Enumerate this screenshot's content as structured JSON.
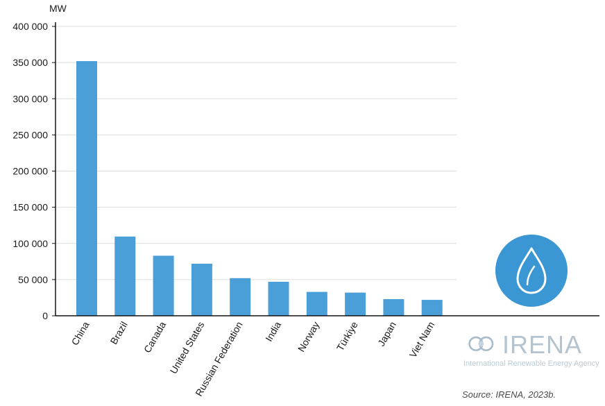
{
  "chart_data": {
    "type": "bar",
    "unit_label": "MW",
    "categories": [
      "China",
      "Brazil",
      "Canada",
      "United States",
      "Russian Federation",
      "India",
      "Norway",
      "Türkiye",
      "Japan",
      "Viet Nam"
    ],
    "values": [
      352000,
      109500,
      83000,
      72000,
      52000,
      47000,
      33000,
      32000,
      23000,
      22000
    ],
    "yticks": [
      0,
      50000,
      100000,
      150000,
      200000,
      250000,
      300000,
      350000,
      400000
    ],
    "ytick_labels": [
      "0",
      "50 000",
      "100 000",
      "150 000",
      "200 000",
      "250 000",
      "300 000",
      "350 000",
      "400 000"
    ],
    "ylim": [
      0,
      400000
    ],
    "grid": true,
    "bar_color": "#4a9fd8"
  },
  "logo": {
    "name": "IRENA",
    "subtitle": "International Renewable Energy Agency",
    "icon": "water-drop-icon",
    "icon_color": "#3a97d4"
  },
  "source": "Source: IRENA, 2023b."
}
